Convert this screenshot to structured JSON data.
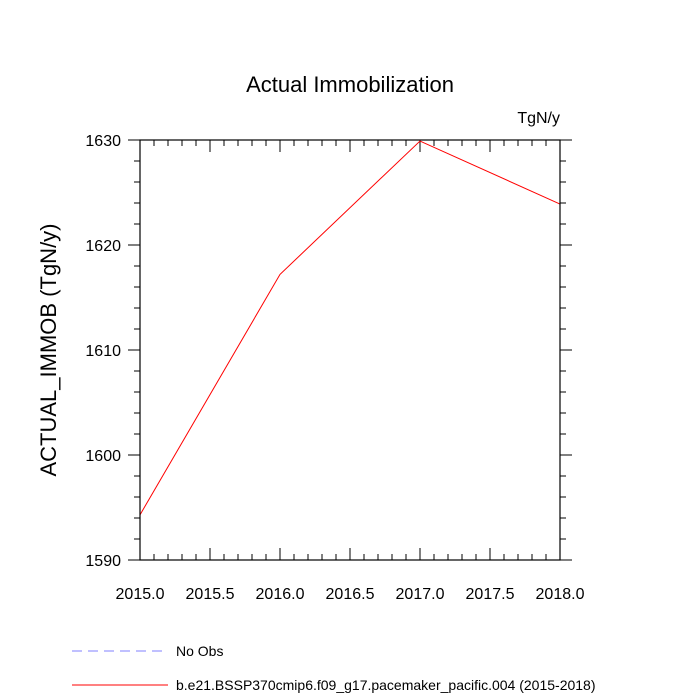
{
  "chart_data": {
    "type": "line",
    "title": "Actual Immobilization",
    "units": "TgN/y",
    "xlabel": "",
    "ylabel": "ACTUAL_IMMOB  (TgN/y)",
    "xlim": [
      2015.0,
      2018.0
    ],
    "ylim": [
      1590,
      1630
    ],
    "x_ticks": [
      2015.0,
      2015.5,
      2016.0,
      2016.5,
      2017.0,
      2017.5,
      2018.0
    ],
    "x_tick_labels": [
      "2015.0",
      "2015.5",
      "2016.0",
      "2016.5",
      "2017.0",
      "2017.5",
      "2018.0"
    ],
    "y_ticks": [
      1590,
      1600,
      1610,
      1620,
      1630
    ],
    "y_tick_labels": [
      "1590",
      "1600",
      "1610",
      "1620",
      "1630"
    ],
    "grid": false,
    "series": [
      {
        "name": "b.e21.BSSP370cmip6.f09_g17.pacemaker_pacific.004 (2015-2018)",
        "color": "#ff0000",
        "dash": "solid",
        "x": [
          2015,
          2016,
          2017,
          2018
        ],
        "values": [
          1594.3,
          1617.2,
          1629.9,
          1623.9
        ]
      }
    ],
    "legend": [
      {
        "label": "No Obs",
        "color": "#8080ff",
        "dash": "dashed"
      },
      {
        "label": "b.e21.BSSP370cmip6.f09_g17.pacemaker_pacific.004 (2015-2018)",
        "color": "#ff0000",
        "dash": "solid"
      }
    ],
    "legend_position": "bottom-left"
  }
}
